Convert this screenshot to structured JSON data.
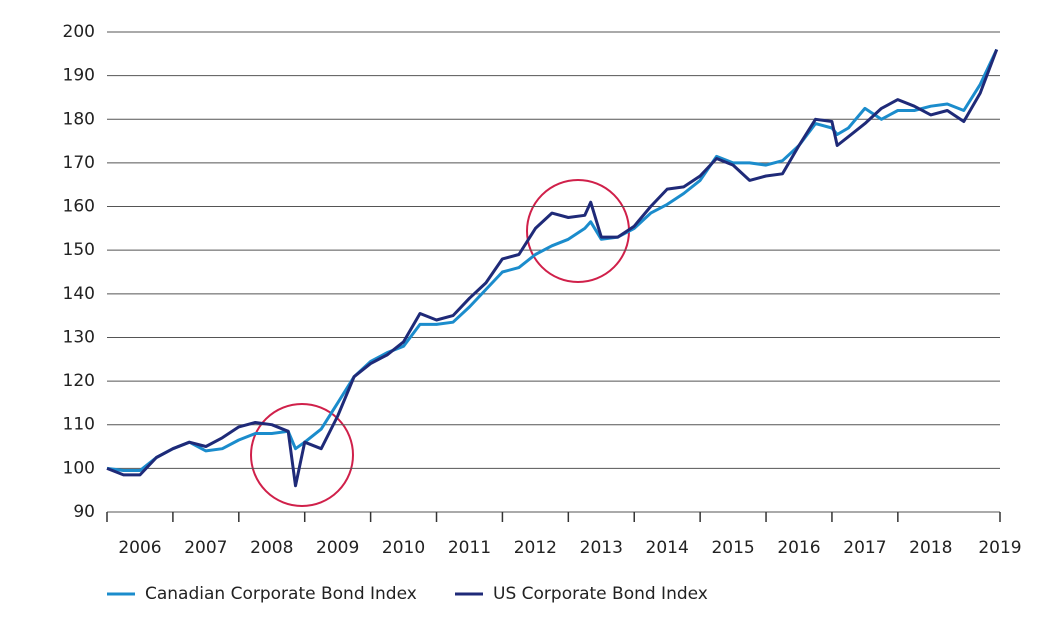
{
  "chart_data": {
    "type": "line",
    "x": [
      2006,
      2006.25,
      2006.5,
      2006.75,
      2007,
      2007.25,
      2007.5,
      2007.75,
      2008,
      2008.25,
      2008.5,
      2008.75,
      2008.86,
      2009,
      2009.25,
      2009.5,
      2009.75,
      2010,
      2010.25,
      2010.5,
      2010.75,
      2011,
      2011.25,
      2011.5,
      2011.75,
      2012,
      2012.25,
      2012.5,
      2012.75,
      2013,
      2013.25,
      2013.34,
      2013.5,
      2013.75,
      2014,
      2014.25,
      2014.5,
      2014.75,
      2015,
      2015.25,
      2015.5,
      2015.75,
      2016,
      2016.25,
      2016.5,
      2016.75,
      2017,
      2017.08,
      2017.25,
      2017.5,
      2017.75,
      2018,
      2018.25,
      2018.5,
      2018.75,
      2019,
      2019.25,
      2019.5
    ],
    "series": [
      {
        "name": "Canadian Corporate Bond Index",
        "color": "#1b8ccc",
        "values": [
          100,
          99.5,
          99.5,
          102.5,
          104.5,
          106,
          104,
          104.5,
          106.5,
          108,
          108,
          108.5,
          104.5,
          106,
          109,
          115,
          121,
          124.5,
          126.5,
          128,
          133,
          133,
          133.5,
          137,
          141,
          145,
          146,
          149,
          151,
          152.5,
          155,
          156.5,
          152.5,
          153,
          155,
          158.5,
          160.5,
          163,
          166,
          171.5,
          170,
          170,
          169.5,
          170.5,
          174,
          179,
          178,
          176.5,
          178,
          182.5,
          180,
          182,
          182,
          183,
          183.5,
          182,
          188,
          196
        ]
      },
      {
        "name": "US Corporate Bond Index",
        "color": "#1f2a78",
        "values": [
          100,
          98.5,
          98.5,
          102.5,
          104.5,
          106,
          105,
          107,
          109.5,
          110.5,
          110,
          108.5,
          96,
          106,
          104.5,
          112,
          121,
          124,
          126,
          129,
          135.5,
          134,
          135,
          139,
          142.5,
          148,
          149,
          155,
          158.5,
          157.5,
          158,
          161,
          153,
          153,
          155.5,
          160,
          164,
          164.5,
          167,
          171,
          169.5,
          166,
          167,
          167.5,
          174,
          180,
          179.5,
          174,
          176,
          179,
          182.5,
          184.5,
          183,
          181,
          182,
          179.5,
          186,
          196
        ]
      }
    ],
    "xlim": [
      2006,
      2019.55
    ],
    "xticks": [
      {
        "value": 2006.5,
        "label": "2006"
      },
      {
        "value": 2007.5,
        "label": "2007"
      },
      {
        "value": 2008.5,
        "label": "2008"
      },
      {
        "value": 2009.5,
        "label": "2009"
      },
      {
        "value": 2010.5,
        "label": "2010"
      },
      {
        "value": 2011.5,
        "label": "2011"
      },
      {
        "value": 2012.5,
        "label": "2012"
      },
      {
        "value": 2013.5,
        "label": "2013"
      },
      {
        "value": 2014.5,
        "label": "2014"
      },
      {
        "value": 2015.5,
        "label": "2015"
      },
      {
        "value": 2016.5,
        "label": "2016"
      },
      {
        "value": 2017.5,
        "label": "2017"
      },
      {
        "value": 2018.5,
        "label": "2018"
      },
      {
        "value": 2019.55,
        "label": "2019"
      }
    ],
    "xtick_marks": [
      2006,
      2007,
      2008,
      2009,
      2010,
      2011,
      2012,
      2013,
      2014,
      2015,
      2016,
      2017,
      2018,
      2019.55
    ],
    "ylim": [
      90,
      200
    ],
    "yticks": [
      90,
      100,
      110,
      120,
      130,
      140,
      150,
      160,
      170,
      180,
      190,
      200
    ],
    "grid": true,
    "legend": "bottom-left"
  }
}
